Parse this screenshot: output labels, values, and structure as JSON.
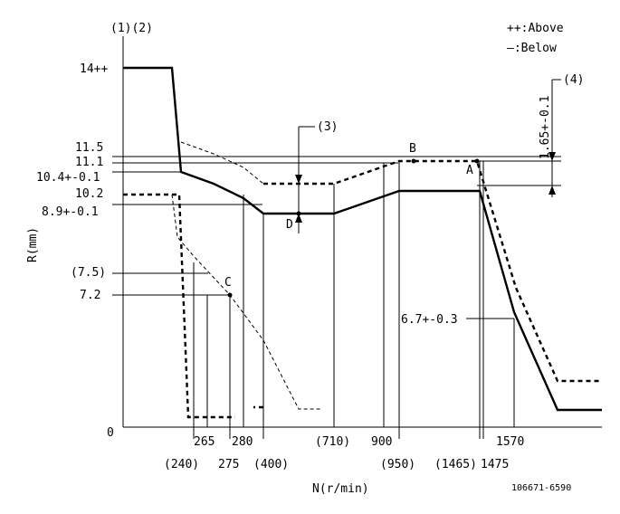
{
  "header": {
    "top_left": "(1)(2)",
    "legend_above": "++:Above",
    "legend_below": "—:Below"
  },
  "axes": {
    "y_label": "R(mm)",
    "x_label": "N(r/min)"
  },
  "y_labels": {
    "y14": "14++",
    "y115": "11.5",
    "y111": "11.1",
    "y104": "10.4+-0.1",
    "y102": "10.2",
    "y89": "8.9+-0.1",
    "y75": "(7.5)",
    "y72": "7.2",
    "y0": "0"
  },
  "x_labels": {
    "x240": "(240)",
    "x265": "265",
    "x275": "275",
    "x280": "280",
    "x400": "(400)",
    "x710": "(710)",
    "x900": "900",
    "x950": "(950)",
    "x1465": "(1465)",
    "x1475": "1475",
    "x1570": "1570"
  },
  "annotations": {
    "note3": "(3)",
    "note4": "(4)",
    "dim4": "1.65+-0.1",
    "val67": "6.7+-0.3",
    "pA": "A",
    "pB": "B",
    "pC": "C",
    "pD": "D"
  },
  "footer": {
    "code": "106671-6590"
  }
}
